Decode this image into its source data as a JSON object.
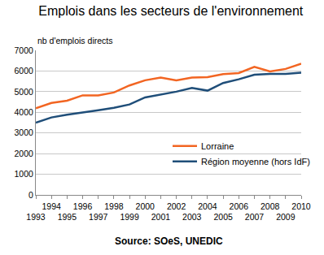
{
  "chart_data": {
    "type": "line",
    "title": "Emplois dans les secteurs de l'environnement",
    "ylabel": "nb d'emplois directs",
    "source": "Source: SOeS, UNEDIC",
    "x": [
      1993,
      1994,
      1995,
      1996,
      1997,
      1998,
      1999,
      2000,
      2001,
      2002,
      2003,
      2004,
      2005,
      2006,
      2007,
      2008,
      2009,
      2010
    ],
    "series": [
      {
        "name": "Lorraine",
        "color": "#f26522",
        "values": [
          4200,
          4450,
          4560,
          4820,
          4820,
          4960,
          5300,
          5550,
          5680,
          5550,
          5680,
          5700,
          5850,
          5900,
          6200,
          5980,
          6100,
          6350
        ]
      },
      {
        "name": "Région moyenne (hors IdF)",
        "color": "#1f4e79",
        "values": [
          3500,
          3750,
          3880,
          3980,
          4100,
          4220,
          4380,
          4720,
          4850,
          5000,
          5180,
          5050,
          5420,
          5600,
          5820,
          5860,
          5860,
          5920
        ]
      }
    ],
    "xlim": [
      1993,
      2010
    ],
    "xticks": [
      1993,
      1994,
      1995,
      1996,
      1997,
      1998,
      1999,
      2000,
      2001,
      2002,
      2003,
      2004,
      2005,
      2006,
      2007,
      2008,
      2009,
      2010
    ],
    "ylim": [
      0,
      7000
    ],
    "yticks": [
      0,
      1000,
      2000,
      3000,
      4000,
      5000,
      6000,
      7000
    ],
    "grid": true,
    "legend": "lower right"
  }
}
